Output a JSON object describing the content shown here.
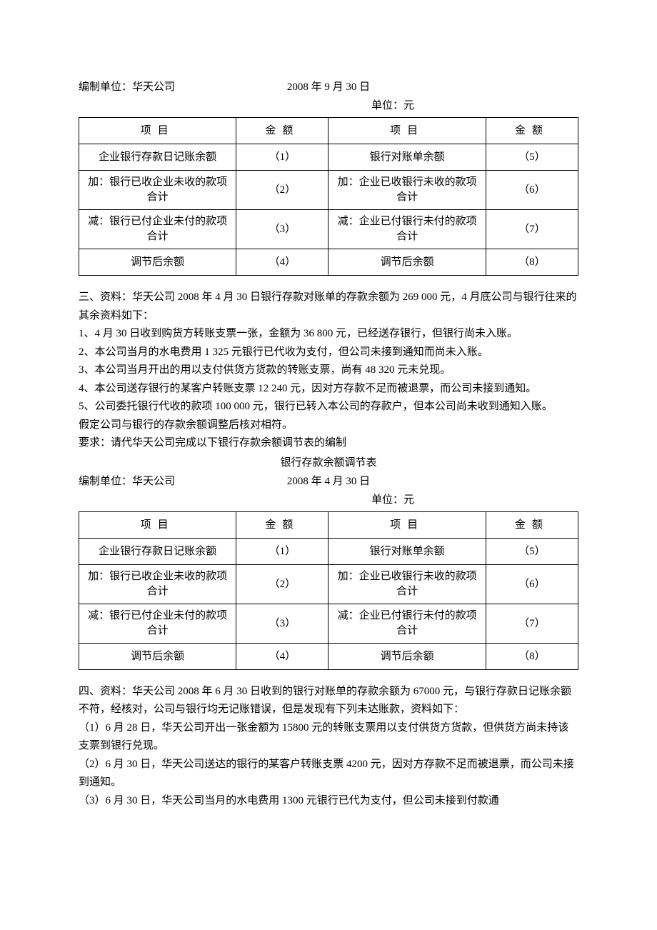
{
  "section1": {
    "org_label": "编制单位：华天公司",
    "date": "2008 年 9 月 30 日",
    "unit": "单位：元",
    "headers": {
      "item": "项目",
      "amount": "金额"
    },
    "rows": [
      {
        "leftLabel": "企业银行存款日记账余额",
        "leftVal": "（1）",
        "rightLabel": "银行对账单余额",
        "rightVal": "（5）"
      },
      {
        "leftLabel": "加：银行已收企业未收的款项合计",
        "leftVal": "（2）",
        "rightLabel": "加：企业已收银行未收的款项合计",
        "rightVal": "（6）"
      },
      {
        "leftLabel": "减：银行已付企业未付的款项合计",
        "leftVal": "（3）",
        "rightLabel": "减：企业已付银行未付的款项合计",
        "rightVal": "（7）"
      },
      {
        "leftLabel": "调节后余额",
        "leftVal": "（4）",
        "rightLabel": "调节后余额",
        "rightVal": "（8）"
      }
    ]
  },
  "para3": {
    "intro": "三、资料：华天公司 2008 年 4 月 30 日银行存款对账单的存款余额为 269 000 元，4 月底公司与银行往来的其余资料如下：",
    "l1": "1、4 月 30 日收到购货方转账支票一张，金额为 36 800 元，已经送存银行，但银行尚未入账。",
    "l2": "2、本公司当月的水电费用 1 325 元银行已代收为支付，但公司未接到通知而尚未入账。",
    "l3": "3、本公司当月开出的用以支付供货方货款的转账支票，尚有 48 320 元未兑现。",
    "l4": "4、本公司送存银行的某客户转账支票 12 240 元，因对方存款不足而被退票，而公司未接到通知。",
    "l5": "5、公司委托银行代收的款项 100 000 元，银行已转入本公司的存款户，但本公司尚未收到通知入账。",
    "assume": "假定公司与银行的存款余额调整后核对相符。",
    "require": "要求：请代华天公司完成以下银行存款余额调节表的编制",
    "tableTitle": "银行存款余额调节表"
  },
  "section2": {
    "org_label": "编制单位：华天公司",
    "date": "2008 年 4 月 30 日",
    "unit": "单位：元",
    "headers": {
      "item": "项目",
      "amount": "金额"
    },
    "rows": [
      {
        "leftLabel": "企业银行存款日记账余额",
        "leftVal": "（1）",
        "rightLabel": "银行对账单余额",
        "rightVal": "（5）"
      },
      {
        "leftLabel": "加：银行已收企业未收的款项合计",
        "leftVal": "（2）",
        "rightLabel": "加：企业已收银行未收的款项合计",
        "rightVal": "（6）"
      },
      {
        "leftLabel": "减：银行已付企业未付的款项合计",
        "leftVal": "（3）",
        "rightLabel": "减：企业已付银行未付的款项合计",
        "rightVal": "（7）"
      },
      {
        "leftLabel": "调节后余额",
        "leftVal": "（4）",
        "rightLabel": "调节后余额",
        "rightVal": "（8）"
      }
    ]
  },
  "para4": {
    "intro": "四、资料：华天公司 2008 年 6 月 30 日收到的银行对账单的存款余额为 67000 元，与银行存款日记账余额不符，经核对，公司与银行均无记账错误，但是发现有下列未达账款，资料如下：",
    "l1": "（1）6 月 28 日，华天公司开出一张金额为 15800 元的转账支票用以支付供货方货款，但供货方尚未持该支票到银行兑现。",
    "l2": "（2）6 月 30 日，华天公司送达的银行的某客户转账支票 4200 元，因对方存款不足而被退票，而公司未接到通知。",
    "l3": "（3）6 月 30 日，华天公司当月的水电费用 1300 元银行已代为支付，但公司未接到付款通"
  }
}
